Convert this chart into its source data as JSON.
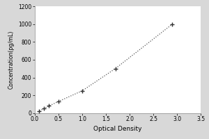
{
  "x_data": [
    0.1,
    0.2,
    0.3,
    0.5,
    1.0,
    1.7,
    2.9
  ],
  "y_data": [
    25,
    50,
    80,
    130,
    250,
    500,
    1000
  ],
  "xlabel": "Optical Density",
  "ylabel": "Concentration(pg/mL)",
  "xlim": [
    0,
    3.5
  ],
  "ylim": [
    0,
    1200
  ],
  "xticks": [
    0,
    0.5,
    1.0,
    1.5,
    2.0,
    2.5,
    3.0,
    3.5
  ],
  "yticks": [
    0,
    200,
    400,
    600,
    800,
    1000,
    1200
  ],
  "line_color": "#555555",
  "marker_color": "#333333",
  "bg_color": "#d8d8d8",
  "plot_bg_color": "#ffffff",
  "xlabel_fontsize": 6.5,
  "ylabel_fontsize": 5.5,
  "tick_fontsize": 5.5
}
